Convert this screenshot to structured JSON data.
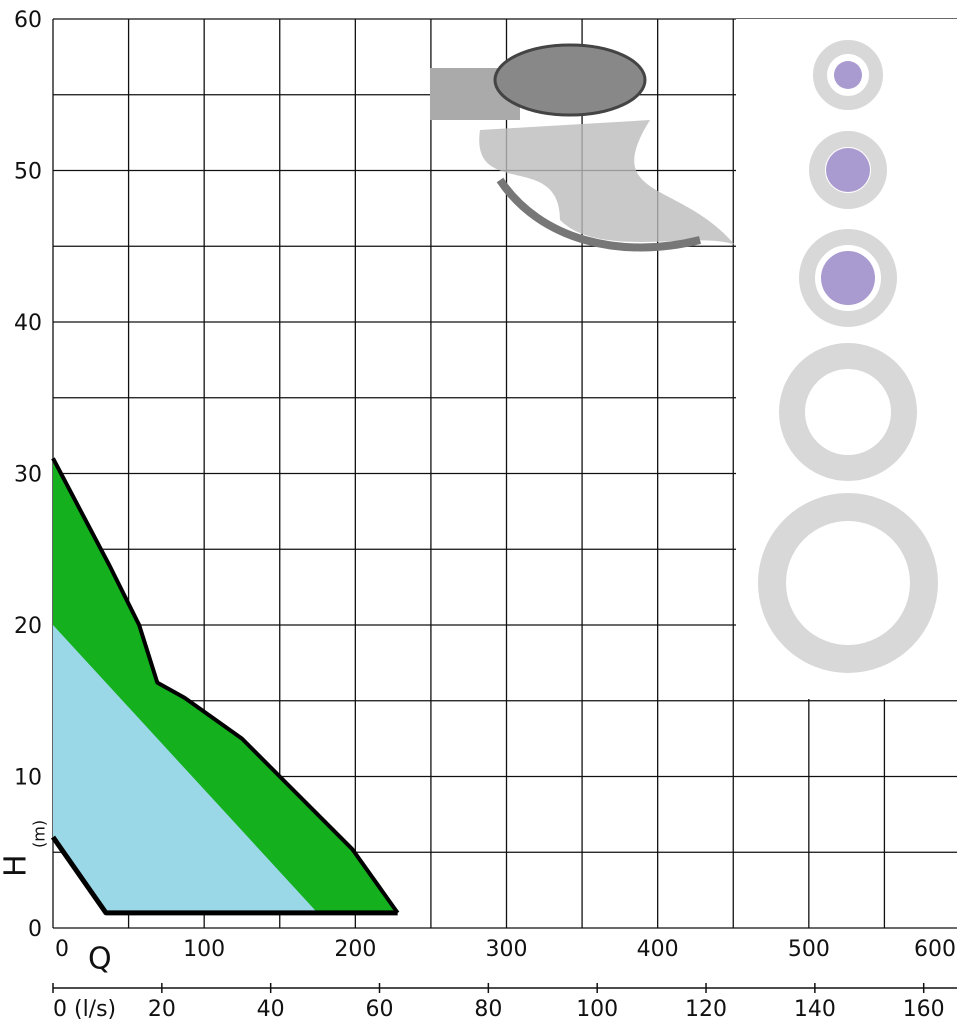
{
  "chart_data": {
    "type": "area",
    "x_label": "Q",
    "y_label": "H",
    "y_unit": "(m)",
    "xlim": [
      0,
      600
    ],
    "xticks": [
      0,
      100,
      200,
      300,
      400,
      500,
      600
    ],
    "minor_xticks": [
      50,
      150,
      250,
      350,
      450,
      550
    ],
    "ylim": [
      0,
      60
    ],
    "yticks": [
      0,
      10,
      20,
      30,
      40,
      50,
      60
    ],
    "minor_yticks": [
      5,
      15,
      25,
      35,
      45,
      55
    ],
    "x2lim": [
      0,
      166.67
    ],
    "x2ticks": [
      {
        "value": 0,
        "label": "0 (l/s)"
      },
      20,
      40,
      60,
      80,
      100,
      120,
      140,
      160
    ],
    "grid": true,
    "series": [
      {
        "color": "#14b01e",
        "x": [
          0,
          37,
          57,
          69,
          87,
          125,
          150,
          198,
          228
        ],
        "values": [
          31,
          24,
          20,
          16.2,
          15.2,
          12.5,
          10,
          5.2,
          1
        ]
      },
      {
        "color": "#9ad8e8",
        "x": [
          0,
          175
        ],
        "values": [
          20,
          1
        ]
      },
      {
        "color": "#000000",
        "x": [
          0,
          35,
          228
        ],
        "values": [
          6,
          1,
          1
        ]
      }
    ]
  }
}
